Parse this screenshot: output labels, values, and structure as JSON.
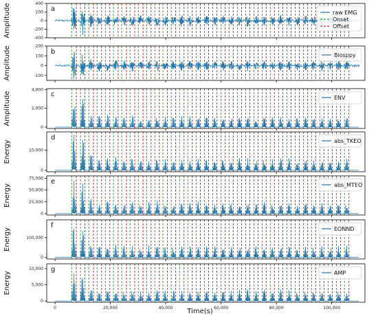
{
  "chart_data": {
    "type": "line",
    "xlabel": "Time(s)",
    "xlim": [
      -3000,
      112000
    ],
    "x_ticks": [
      0,
      20000,
      40000,
      60000,
      80000,
      100000
    ],
    "x_tick_labels": [
      "0",
      "20,000",
      "40,000",
      "60,000",
      "80,000",
      "100,000"
    ],
    "colors": {
      "signal": "#1f77b4",
      "onset": "#2ca02c",
      "offset": "#d62728",
      "axes": "#000000"
    },
    "legend_placement": "top-right",
    "onsets": [
      6000,
      9200,
      12200,
      15200,
      18200,
      21100,
      24100,
      27100,
      30100,
      33100,
      36100,
      39000,
      42000,
      45000,
      48000,
      51000,
      54000,
      57000,
      60000,
      62900,
      65900,
      68900,
      71900,
      74900,
      77800,
      80800,
      83800,
      86800,
      89800,
      92700,
      95700,
      98700,
      101700,
      104600
    ],
    "offsets": [
      7700,
      10800,
      13900,
      16800,
      19800,
      22800,
      25800,
      28800,
      31800,
      34700,
      37700,
      40600,
      43600,
      46600,
      49600,
      52500,
      55500,
      58500,
      61500,
      64400,
      67400,
      70400,
      73400,
      76300,
      79300,
      82300,
      85300,
      88300,
      91300,
      94200,
      97200,
      100200,
      103200,
      106200
    ],
    "burst_peaks": [
      1.0,
      0.95,
      0.5,
      0.4,
      0.42,
      0.38,
      0.36,
      0.4,
      0.37,
      0.35,
      0.39,
      0.33,
      0.36,
      0.38,
      0.34,
      0.35,
      0.37,
      0.33,
      0.36,
      0.34,
      0.35,
      0.38,
      0.33,
      0.36,
      0.34,
      0.37,
      0.35,
      0.33,
      0.36,
      0.34,
      0.35,
      0.33,
      0.36,
      0.34
    ],
    "panels": [
      {
        "letter": "a",
        "ylabel": "Amplitude",
        "legend": [
          "raw EMG",
          "Onset",
          "Offset"
        ],
        "signal_type": "raw",
        "ylim": [
          -400,
          400
        ],
        "yticks": [
          -400,
          -200,
          0,
          200,
          400
        ],
        "ytick_labels": [
          "-400",
          "-200",
          "0",
          "200",
          "400"
        ],
        "peak_scale": 370
      },
      {
        "letter": "b",
        "ylabel": "Amplitude",
        "legend": [
          "Biosppy"
        ],
        "signal_type": "raw",
        "ylim": [
          -150,
          200
        ],
        "yticks": [
          -100,
          0,
          100,
          200
        ],
        "ytick_labels": [
          "-100",
          "0",
          "100",
          "200"
        ],
        "peak_scale": 150
      },
      {
        "letter": "c",
        "ylabel": "Amplitude",
        "legend": [
          "ENV"
        ],
        "signal_type": "energy",
        "ylim": [
          -150,
          4100
        ],
        "yticks": [
          0,
          2000,
          4000
        ],
        "ytick_labels": [
          "0",
          "2,000",
          "4,000"
        ],
        "peak_scale": 3400
      },
      {
        "letter": "d",
        "ylabel": "Energy",
        "legend": [
          "abs_TKEO"
        ],
        "signal_type": "energy",
        "ylim": [
          -700,
          19000
        ],
        "yticks": [
          0,
          10000
        ],
        "ytick_labels": [
          "0",
          "10,000"
        ],
        "peak_scale": 18000
      },
      {
        "letter": "e",
        "ylabel": "Energy",
        "legend": [
          "abs_MTEO"
        ],
        "signal_type": "energy",
        "ylim": [
          -3000,
          80000
        ],
        "yticks": [
          0,
          25000,
          50000,
          75000
        ],
        "ytick_labels": [
          "0",
          "25,000",
          "50,000",
          "75,000"
        ],
        "peak_scale": 72000
      },
      {
        "letter": "f",
        "ylabel": "Energy",
        "legend": [
          "EONND"
        ],
        "signal_type": "energy",
        "ylim": [
          -8000,
          190000
        ],
        "yticks": [
          0,
          100000
        ],
        "ytick_labels": [
          "0",
          "100,000"
        ],
        "peak_scale": 175000
      },
      {
        "letter": "g",
        "ylabel": "Energy",
        "legend": [
          "AMP"
        ],
        "signal_type": "energy",
        "ylim": [
          -400,
          11500
        ],
        "yticks": [
          0,
          5000,
          10000
        ],
        "ytick_labels": [
          "0",
          "5,000",
          "10,000"
        ],
        "peak_scale": 10200
      }
    ]
  }
}
